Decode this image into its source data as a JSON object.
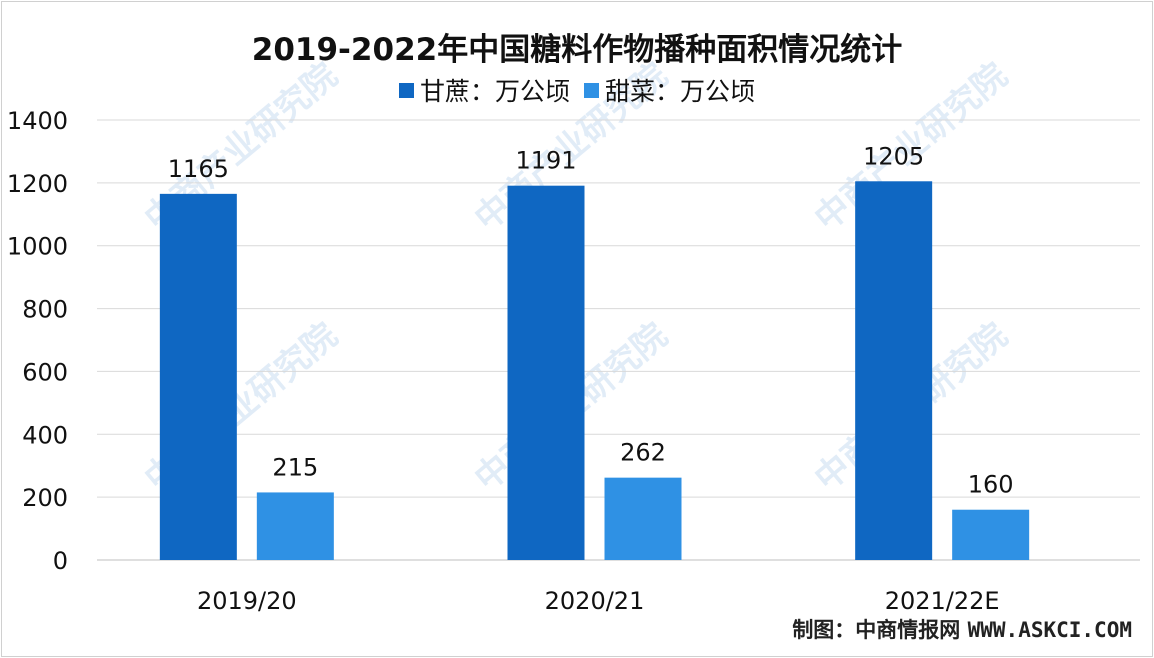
{
  "watermark": {
    "line1": "中商产业研究院"
  },
  "source": {
    "label": "制图：中商情报网",
    "url": "WWW.ASKCI.COM"
  },
  "colors": {
    "sugarcane": "#0f67c2",
    "sugarbeet": "#2f91e4",
    "grid": "#d9d9d9",
    "text": "#111111"
  },
  "chart_data": {
    "type": "bar",
    "title": "2019-2022年中国糖料作物播种面积情况统计",
    "categories": [
      "2019/20",
      "2020/21",
      "2021/22E"
    ],
    "series": [
      {
        "name": "甘蔗：万公顷",
        "values": [
          1165,
          1191,
          1205
        ]
      },
      {
        "name": "甜菜：万公顷",
        "values": [
          215,
          262,
          160
        ]
      }
    ],
    "ylim": [
      0,
      1400
    ],
    "yticks": [
      0,
      200,
      400,
      600,
      800,
      1000,
      1200,
      1400
    ],
    "grid": true,
    "legend": "top-center",
    "xlabel": "",
    "ylabel": ""
  }
}
